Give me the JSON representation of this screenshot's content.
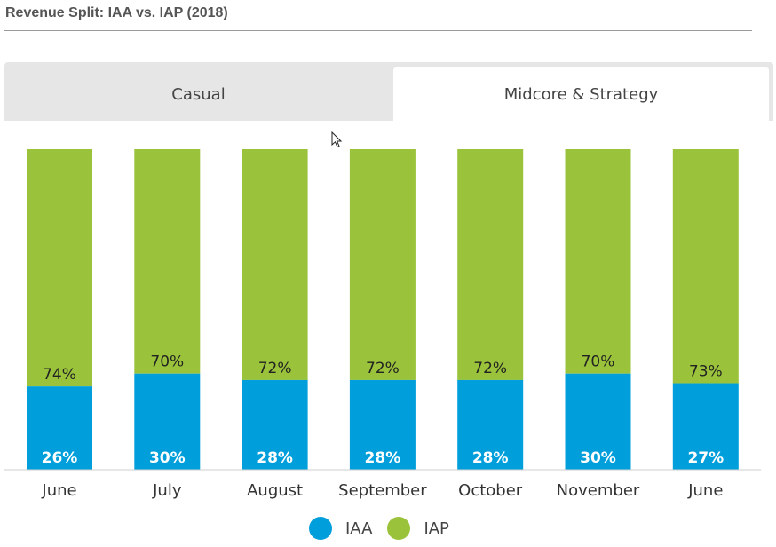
{
  "page": {
    "title": "Revenue Split: IAA vs. IAP (2018)"
  },
  "tabs": [
    {
      "label": "Casual",
      "active": false
    },
    {
      "label": "Midcore & Strategy",
      "active": true
    }
  ],
  "colors": {
    "iaa": "#009fdb",
    "iap": "#9ac33b"
  },
  "legend": [
    {
      "name": "IAA",
      "color": "#009fdb"
    },
    {
      "name": "IAP",
      "color": "#9ac33b"
    }
  ],
  "chart_data": {
    "type": "bar",
    "stacked": true,
    "categories": [
      "June",
      "July",
      "August",
      "September",
      "October",
      "November",
      "June"
    ],
    "series": [
      {
        "name": "IAA",
        "values": [
          26,
          30,
          28,
          28,
          28,
          30,
          27
        ],
        "labels": [
          "26%",
          "30%",
          "28%",
          "28%",
          "28%",
          "30%",
          "27%"
        ]
      },
      {
        "name": "IAP",
        "values": [
          74,
          70,
          72,
          72,
          72,
          70,
          73
        ],
        "labels": [
          "74%",
          "70%",
          "72%",
          "72%",
          "72%",
          "70%",
          "73%"
        ]
      }
    ],
    "ylim": [
      0,
      100
    ],
    "grid": false,
    "legend_position": "bottom-center"
  }
}
